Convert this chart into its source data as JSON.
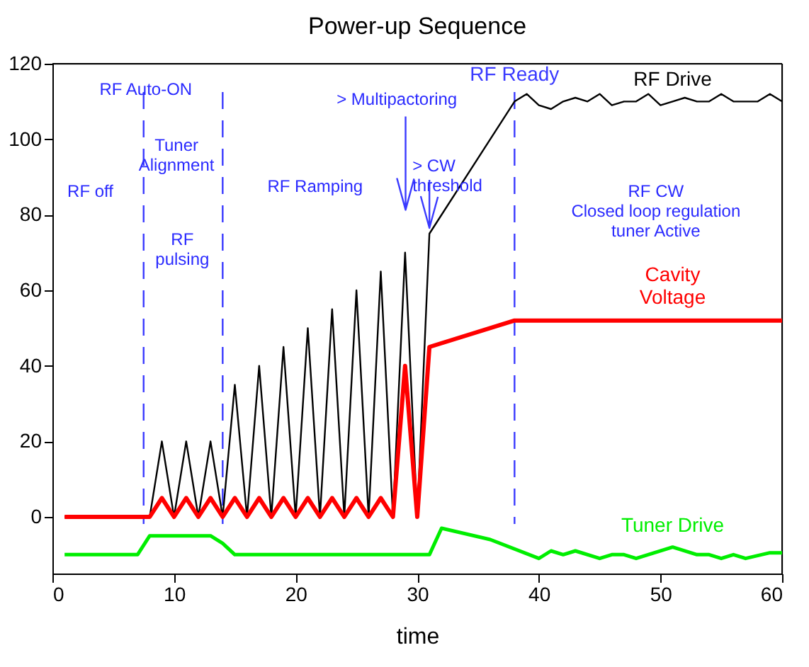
{
  "chart_data": {
    "type": "line",
    "title": "Power-up Sequence",
    "xlabel": "time",
    "xlim": [
      0,
      60
    ],
    "xticks": [
      0,
      10,
      20,
      30,
      40,
      50,
      60
    ],
    "ylim": [
      -15,
      120
    ],
    "yticks": [
      0,
      20,
      40,
      60,
      80,
      100,
      120
    ],
    "grid": false,
    "legend": false,
    "marker": "none",
    "line_style": "solid",
    "series": [
      {
        "name": "RF Drive",
        "color": "#000000",
        "x": [
          1,
          8,
          9,
          10,
          11,
          12,
          13,
          14,
          15,
          16,
          17,
          18,
          19,
          20,
          21,
          22,
          23,
          24,
          25,
          26,
          27,
          28,
          29,
          30,
          31,
          38,
          39,
          40,
          41,
          42,
          43,
          44,
          45,
          46,
          47,
          48,
          49,
          50,
          51,
          52,
          53,
          54,
          55,
          56,
          57,
          58,
          59,
          60
        ],
        "values": [
          0,
          0,
          20,
          0,
          20,
          0,
          20,
          0,
          35,
          0,
          40,
          0,
          45,
          0,
          50,
          0,
          55,
          0,
          60,
          0,
          65,
          0,
          70,
          0,
          75,
          110,
          112,
          109,
          108,
          110,
          111,
          110,
          112,
          109,
          110,
          110,
          112,
          109,
          110,
          111,
          110,
          110,
          112,
          110,
          110,
          110,
          112,
          110
        ]
      },
      {
        "name": "Cavity Voltage",
        "color": "#ff0000",
        "x": [
          1,
          8,
          9,
          10,
          11,
          12,
          13,
          14,
          15,
          16,
          17,
          18,
          19,
          20,
          21,
          22,
          23,
          24,
          25,
          26,
          27,
          28,
          29,
          30,
          31,
          38,
          60
        ],
        "values": [
          0,
          0,
          5,
          0,
          5,
          0,
          5,
          0,
          5,
          0,
          5,
          0,
          5,
          0,
          5,
          0,
          5,
          0,
          5,
          0,
          5,
          0,
          40,
          0,
          45,
          52,
          52
        ]
      },
      {
        "name": "Tuner Drive",
        "color": "#00ee00",
        "x": [
          1,
          7,
          8,
          13,
          14,
          15,
          31,
          32,
          36,
          40,
          41,
          42,
          43,
          45,
          46,
          47,
          48,
          51,
          53,
          54,
          55,
          56,
          57,
          59,
          60
        ],
        "values": [
          -10,
          -10,
          -5,
          -5,
          -7,
          -10,
          -10,
          -3,
          -6,
          -11,
          -9,
          -10,
          -9,
          -11,
          -10,
          -10,
          -11,
          -8,
          -10,
          -10,
          -11,
          -10,
          -11,
          -9.5,
          -9.5
        ]
      }
    ],
    "ref_lines": [
      {
        "axis": "x",
        "value": 7.5,
        "label": null,
        "color": "#3a3aff",
        "line_style": "dashed"
      },
      {
        "axis": "x",
        "value": 14,
        "label": null,
        "color": "#3a3aff",
        "line_style": "dashed"
      },
      {
        "axis": "x",
        "value": 38,
        "label": "RF Ready",
        "color": "#3a3aff",
        "line_style": "dashed"
      }
    ],
    "annotations": [
      "RF off",
      "RF Auto-ON",
      "Tuner\nAlignment",
      "RF\npulsing",
      "RF Ramping",
      "> Multipactoring",
      {
        "text": "> CW\nthreshold",
        "x": 31,
        "y": 75
      },
      "RF CW\nClosed loop regulation\ntuner Active"
    ]
  }
}
